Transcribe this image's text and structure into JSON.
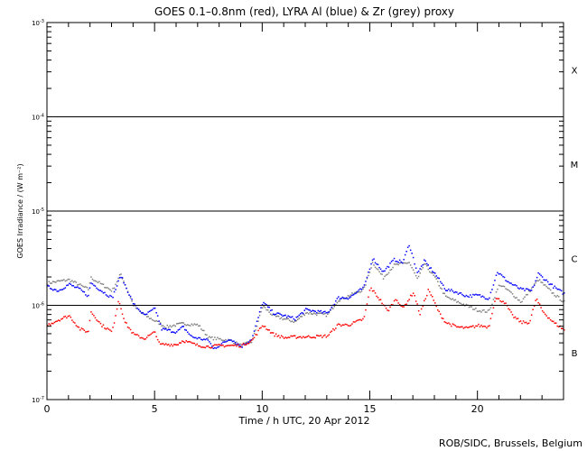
{
  "chart_data": {
    "type": "scatter",
    "title": "GOES 0.1–0.8nm (red), LYRA Al (blue) & Zr (grey) proxy",
    "xlabel": "Time / h UTC, 20 Apr 2012",
    "ylabel": "GOES Irradiance / (W m⁻²)",
    "xlim": [
      0,
      24
    ],
    "ylim": [
      1e-07,
      0.001
    ],
    "yscale": "log",
    "x_ticks": [
      "0",
      "5",
      "10",
      "15",
      "20"
    ],
    "y_ticks": [
      {
        "base": "10",
        "exp": "-7",
        "value": 1e-07
      },
      {
        "base": "10",
        "exp": "-6",
        "value": 1e-06
      },
      {
        "base": "10",
        "exp": "-5",
        "value": 1e-05
      },
      {
        "base": "10",
        "exp": "-4",
        "value": 0.0001
      },
      {
        "base": "10",
        "exp": "-3",
        "value": 0.001
      }
    ],
    "reference_lines": [
      1e-06,
      1e-05,
      0.0001
    ],
    "flare_classes": [
      {
        "label": "X",
        "log_center": -3.5
      },
      {
        "label": "M",
        "log_center": -4.5
      },
      {
        "label": "C",
        "log_center": -5.5
      },
      {
        "label": "B",
        "log_center": -6.5
      }
    ],
    "series": [
      {
        "name": "LYRA Zr proxy",
        "color": "#808080",
        "x": [
          0,
          1,
          1.9,
          2,
          3,
          3.4,
          4,
          4.5,
          5.5,
          6.3,
          7,
          7.5,
          8.5,
          9,
          9.5,
          10,
          10.5,
          11.5,
          12,
          13,
          13.5,
          14.7,
          15.1,
          15.6,
          16.1,
          16.8,
          17.2,
          17.5,
          18,
          18.5,
          19.5,
          20,
          20.5,
          21,
          21.5,
          22,
          22.8,
          23.5,
          24
        ],
        "y": [
          1.75e-06,
          1.9e-06,
          1.5e-06,
          2e-06,
          1.45e-06,
          2.2e-06,
          1e-06,
          8e-07,
          6e-07,
          6.5e-07,
          6.3e-07,
          4.6e-07,
          4.3e-07,
          3.8e-07,
          4.2e-07,
          1e-06,
          7.8e-07,
          6.8e-07,
          8.5e-07,
          8e-07,
          1.15e-06,
          1.5e-06,
          2.9e-06,
          2e-06,
          2.7e-06,
          2.9e-06,
          1.9e-06,
          2.8e-06,
          2e-06,
          1.25e-06,
          1e-06,
          9e-07,
          8.7e-07,
          1.7e-06,
          1.4e-06,
          1.1e-06,
          1.9e-06,
          1.35e-06,
          1.1e-06
        ]
      },
      {
        "name": "LYRA Al proxy",
        "color": "#0000ff",
        "x": [
          0,
          0.5,
          1,
          1.5,
          1.9,
          2,
          2.5,
          3,
          3.4,
          4,
          4.5,
          5,
          5.3,
          6,
          6.3,
          6.7,
          7.5,
          7.7,
          8.5,
          9,
          9.5,
          10,
          10.5,
          11,
          11.5,
          12,
          13,
          13.5,
          14,
          14.7,
          15.1,
          15.6,
          16.1,
          16.5,
          16.8,
          17.2,
          17.5,
          18,
          18.5,
          19,
          19.5,
          20,
          20.5,
          20.9,
          21.4,
          22,
          22.5,
          22.8,
          23.5,
          24
        ],
        "y": [
          1.6e-06,
          1.45e-06,
          1.7e-06,
          1.5e-06,
          1.27e-06,
          1.77e-06,
          1.45e-06,
          1.22e-06,
          2.1e-06,
          1.05e-06,
          7.9e-07,
          9.4e-07,
          5.7e-07,
          5.3e-07,
          6e-07,
          4.7e-07,
          4.3e-07,
          3.5e-07,
          4.5e-07,
          3.7e-07,
          4.5e-07,
          1.1e-06,
          8.4e-07,
          7.9e-07,
          7.3e-07,
          9.1e-07,
          8.4e-07,
          1.22e-06,
          1.22e-06,
          1.57e-06,
          3.2e-06,
          2.3e-06,
          3.1e-06,
          2.9e-06,
          4.5e-06,
          2.2e-06,
          3e-06,
          2.2e-06,
          1.5e-06,
          1.4e-06,
          1.27e-06,
          1.3e-06,
          1.2e-06,
          2.3e-06,
          1.8e-06,
          1.5e-06,
          1.45e-06,
          2.2e-06,
          1.6e-06,
          1.35e-06
        ]
      },
      {
        "name": "GOES 0.1-0.8nm",
        "color": "#ff0000",
        "x": [
          0,
          0.5,
          1,
          1.5,
          1.9,
          2,
          2.5,
          3,
          3.3,
          3.6,
          4,
          4.5,
          5,
          5.2,
          6,
          6.3,
          7,
          7.5,
          8,
          9,
          9.5,
          10,
          10.5,
          11,
          11.5,
          12,
          13,
          13.5,
          14,
          14.7,
          15,
          15.5,
          15.8,
          16.2,
          16.5,
          17,
          17.3,
          17.7,
          18.2,
          18.5,
          19,
          19.5,
          20,
          20.5,
          20.8,
          21.2,
          21.6,
          22,
          22.4,
          22.7,
          23,
          23.5,
          24
        ],
        "y": [
          6.3e-07,
          7.1e-07,
          7.9e-07,
          5.7e-07,
          5.3e-07,
          8.8e-07,
          6.3e-07,
          5.3e-07,
          1.17e-06,
          6.7e-07,
          5e-07,
          4.5e-07,
          5.3e-07,
          3.9e-07,
          3.9e-07,
          4.3e-07,
          3.8e-07,
          3.7e-07,
          3.8e-07,
          3.8e-07,
          4.3e-07,
          6.3e-07,
          5e-07,
          4.6e-07,
          4.7e-07,
          4.7e-07,
          4.8e-07,
          6.3e-07,
          6.3e-07,
          7.3e-07,
          1.57e-06,
          1.12e-06,
          8.8e-07,
          1.2e-06,
          9.4e-07,
          1.4e-06,
          8.2e-07,
          1.5e-06,
          8.4e-07,
          6.7e-07,
          6e-07,
          5.8e-07,
          6.2e-07,
          6e-07,
          1.2e-06,
          1.12e-06,
          7.9e-07,
          6.7e-07,
          6.7e-07,
          1.2e-06,
          8.8e-07,
          6.7e-07,
          5.6e-07
        ]
      }
    ]
  },
  "footer": {
    "credit": "ROB/SIDC, Brussels, Belgium"
  }
}
